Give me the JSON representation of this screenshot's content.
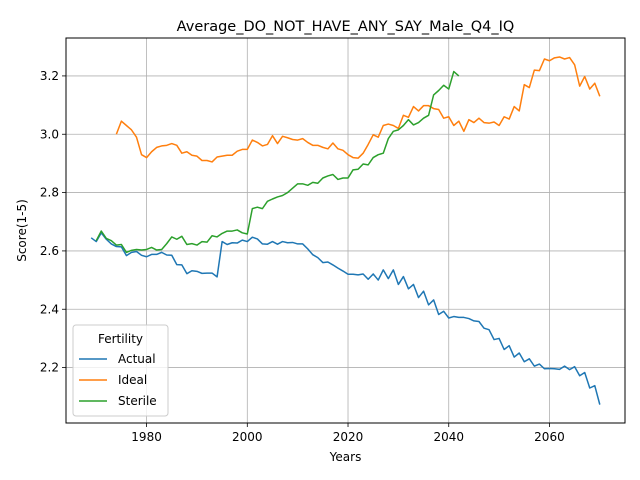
{
  "chart_data": {
    "type": "line",
    "title": "Average_DO_NOT_HAVE_ANY_SAY_Male_Q4_IQ",
    "xlabel": "Years",
    "ylabel": "Score(1-5)",
    "xlim": [
      1964,
      2075
    ],
    "ylim": [
      2.01,
      3.33
    ],
    "x_ticks": [
      1980,
      2000,
      2020,
      2040,
      2060
    ],
    "y_ticks": [
      2.2,
      2.4,
      2.6,
      2.8,
      3.0,
      3.2
    ],
    "x_tick_labels": [
      "1980",
      "2000",
      "2020",
      "2040",
      "2060"
    ],
    "y_tick_labels": [
      "2.2",
      "2.4",
      "2.6",
      "2.8",
      "3.0",
      "3.2"
    ],
    "grid": true,
    "legend": {
      "title": "Fertility",
      "placement": "lower-left"
    },
    "series": [
      {
        "name": "Actual",
        "color": "#1f77b4",
        "x": [
          1969,
          1970,
          1971,
          1972,
          1973,
          1974,
          1975,
          1976,
          1977,
          1978,
          1979,
          1980,
          1981,
          1982,
          1983,
          1984,
          1985,
          1986,
          1987,
          1988,
          1989,
          1990,
          1991,
          1992,
          1993,
          1994,
          1995,
          1996,
          1997,
          1998,
          1999,
          2000,
          2001,
          2002,
          2003,
          2004,
          2005,
          2006,
          2007,
          2008,
          2009,
          2010,
          2011,
          2012,
          2013,
          2014,
          2015,
          2016,
          2017,
          2018,
          2019,
          2020,
          2021,
          2022,
          2023,
          2024,
          2025,
          2026,
          2027,
          2028,
          2029,
          2030,
          2031,
          2032,
          2033,
          2034,
          2035,
          2036,
          2037,
          2038,
          2039,
          2040,
          2041,
          2042,
          2043,
          2044,
          2045,
          2046,
          2047,
          2048,
          2049,
          2050,
          2051,
          2052,
          2053,
          2054,
          2055,
          2056,
          2057,
          2058,
          2059,
          2060,
          2061,
          2062,
          2063,
          2064,
          2065,
          2066,
          2067,
          2068,
          2069,
          2070
        ],
        "values": [
          2.645,
          2.632,
          2.662,
          2.64,
          2.624,
          2.615,
          2.614,
          2.584,
          2.595,
          2.598,
          2.585,
          2.58,
          2.588,
          2.588,
          2.595,
          2.586,
          2.585,
          2.553,
          2.552,
          2.522,
          2.532,
          2.53,
          2.523,
          2.524,
          2.524,
          2.511,
          2.632,
          2.622,
          2.628,
          2.627,
          2.637,
          2.632,
          2.647,
          2.641,
          2.624,
          2.623,
          2.632,
          2.623,
          2.632,
          2.628,
          2.629,
          2.624,
          2.624,
          2.607,
          2.587,
          2.577,
          2.56,
          2.562,
          2.552,
          2.541,
          2.531,
          2.52,
          2.52,
          2.518,
          2.521,
          2.503,
          2.521,
          2.5,
          2.535,
          2.505,
          2.535,
          2.485,
          2.512,
          2.47,
          2.485,
          2.44,
          2.462,
          2.415,
          2.432,
          2.382,
          2.393,
          2.37,
          2.375,
          2.372,
          2.372,
          2.368,
          2.36,
          2.358,
          2.335,
          2.33,
          2.296,
          2.3,
          2.262,
          2.275,
          2.236,
          2.25,
          2.22,
          2.23,
          2.205,
          2.212,
          2.196,
          2.197,
          2.196,
          2.194,
          2.205,
          2.193,
          2.203,
          2.172,
          2.183,
          2.13,
          2.138,
          2.073
        ]
      },
      {
        "name": "Ideal",
        "color": "#ff7f0e",
        "x": [
          1974,
          1975,
          1976,
          1977,
          1978,
          1979,
          1980,
          1981,
          1982,
          1983,
          1984,
          1985,
          1986,
          1987,
          1988,
          1989,
          1990,
          1991,
          1992,
          1993,
          1994,
          1995,
          1996,
          1997,
          1998,
          1999,
          2000,
          2001,
          2002,
          2003,
          2004,
          2005,
          2006,
          2007,
          2008,
          2009,
          2010,
          2011,
          2012,
          2013,
          2014,
          2015,
          2016,
          2017,
          2018,
          2019,
          2020,
          2021,
          2022,
          2023,
          2024,
          2025,
          2026,
          2027,
          2028,
          2029,
          2030,
          2031,
          2032,
          2033,
          2034,
          2035,
          2036,
          2037,
          2038,
          2039,
          2040,
          2041,
          2042,
          2043,
          2044,
          2045,
          2046,
          2047,
          2048,
          2049,
          2050,
          2051,
          2052,
          2053,
          2054,
          2055,
          2056,
          2057,
          2058,
          2059,
          2060,
          2061,
          2062,
          2063,
          2064,
          2065,
          2066,
          2067,
          2068,
          2069,
          2070
        ],
        "values": [
          3.0,
          3.045,
          3.03,
          3.015,
          2.99,
          2.93,
          2.92,
          2.94,
          2.955,
          2.96,
          2.962,
          2.968,
          2.962,
          2.935,
          2.94,
          2.928,
          2.925,
          2.91,
          2.91,
          2.905,
          2.922,
          2.925,
          2.928,
          2.928,
          2.942,
          2.948,
          2.948,
          2.98,
          2.972,
          2.96,
          2.965,
          2.995,
          2.968,
          2.993,
          2.988,
          2.982,
          2.98,
          2.985,
          2.972,
          2.962,
          2.962,
          2.955,
          2.95,
          2.97,
          2.95,
          2.945,
          2.93,
          2.92,
          2.918,
          2.935,
          2.965,
          2.998,
          2.99,
          3.03,
          3.035,
          3.03,
          3.02,
          3.065,
          3.058,
          3.095,
          3.08,
          3.098,
          3.098,
          3.088,
          3.085,
          3.055,
          3.06,
          3.03,
          3.045,
          3.01,
          3.05,
          3.04,
          3.055,
          3.04,
          3.038,
          3.042,
          3.03,
          3.06,
          3.052,
          3.095,
          3.08,
          3.17,
          3.16,
          3.22,
          3.218,
          3.258,
          3.252,
          3.262,
          3.265,
          3.258,
          3.263,
          3.238,
          3.165,
          3.198,
          3.155,
          3.175,
          3.13
        ]
      },
      {
        "name": "Sterile",
        "color": "#2ca02c",
        "x": [
          1970,
          1971,
          1972,
          1973,
          1974,
          1975,
          1976,
          1977,
          1978,
          1979,
          1980,
          1981,
          1982,
          1983,
          1984,
          1985,
          1986,
          1987,
          1988,
          1989,
          1990,
          1991,
          1992,
          1993,
          1994,
          1995,
          1996,
          1997,
          1998,
          1999,
          2000,
          2001,
          2002,
          2003,
          2004,
          2005,
          2006,
          2007,
          2008,
          2009,
          2010,
          2011,
          2012,
          2013,
          2014,
          2015,
          2016,
          2017,
          2018,
          2019,
          2020,
          2021,
          2022,
          2023,
          2024,
          2025,
          2026,
          2027,
          2028,
          2029,
          2030,
          2031,
          2032,
          2033,
          2034,
          2035,
          2036,
          2037,
          2038,
          2039,
          2040,
          2041,
          2042
        ],
        "values": [
          2.635,
          2.668,
          2.643,
          2.635,
          2.62,
          2.622,
          2.595,
          2.602,
          2.605,
          2.603,
          2.605,
          2.612,
          2.603,
          2.605,
          2.625,
          2.648,
          2.64,
          2.65,
          2.622,
          2.625,
          2.62,
          2.632,
          2.63,
          2.652,
          2.648,
          2.66,
          2.668,
          2.668,
          2.672,
          2.662,
          2.658,
          2.745,
          2.75,
          2.745,
          2.77,
          2.778,
          2.785,
          2.79,
          2.8,
          2.815,
          2.83,
          2.83,
          2.825,
          2.835,
          2.832,
          2.85,
          2.857,
          2.862,
          2.845,
          2.85,
          2.85,
          2.878,
          2.88,
          2.898,
          2.895,
          2.92,
          2.93,
          2.935,
          2.985,
          3.01,
          3.015,
          3.03,
          3.05,
          3.032,
          3.04,
          3.055,
          3.065,
          3.135,
          3.15,
          3.168,
          3.155,
          3.215,
          3.2
        ]
      }
    ]
  }
}
